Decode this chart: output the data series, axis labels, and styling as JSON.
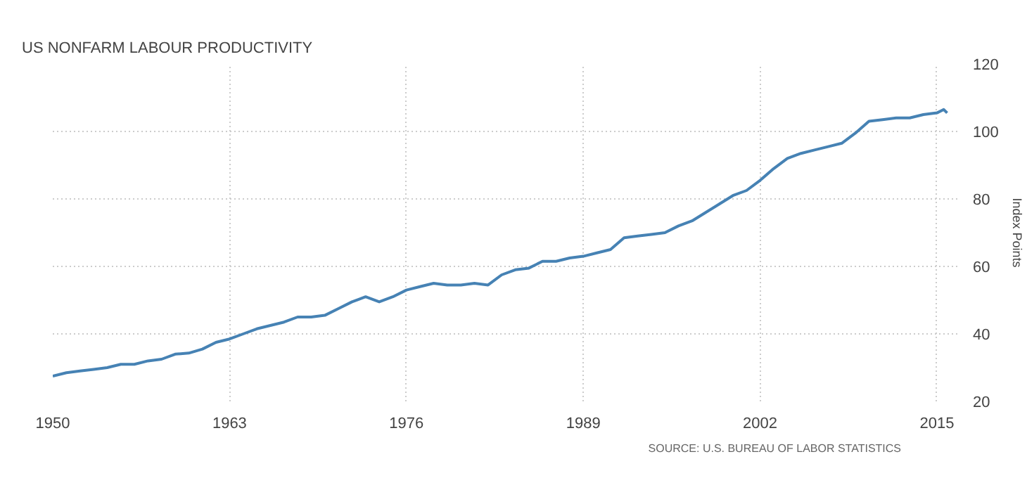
{
  "chart_data": {
    "type": "line",
    "title": "US NONFARM LABOUR PRODUCTIVITY",
    "ylabel": "Index Points",
    "annotations": [
      "SOURCE: U.S. BUREAU OF LABOR STATISTICS"
    ],
    "x": [
      1950,
      1951,
      1952,
      1953,
      1954,
      1955,
      1956,
      1957,
      1958,
      1959,
      1960,
      1961,
      1962,
      1963,
      1964,
      1965,
      1966,
      1967,
      1968,
      1969,
      1970,
      1971,
      1972,
      1973,
      1974,
      1975,
      1976,
      1977,
      1978,
      1979,
      1980,
      1981,
      1982,
      1983,
      1984,
      1985,
      1986,
      1987,
      1988,
      1989,
      1990,
      1991,
      1992,
      1993,
      1994,
      1995,
      1996,
      1997,
      1998,
      1999,
      2000,
      2001,
      2002,
      2003,
      2004,
      2005,
      2006,
      2007,
      2008,
      2009,
      2010,
      2011,
      2012,
      2013,
      2014,
      2015,
      2015.5,
      2015.75
    ],
    "series": [
      {
        "color": "#4682b4",
        "values": [
          27.5,
          28.5,
          29,
          29.5,
          30,
          31,
          31,
          32,
          32.5,
          34,
          34.3,
          35.5,
          37.5,
          38.5,
          40,
          41.5,
          42.5,
          43.5,
          45,
          45,
          45.5,
          47.5,
          49.5,
          51,
          49.5,
          51,
          53,
          54,
          55,
          54.5,
          54.5,
          55,
          54.5,
          57.5,
          59,
          59.5,
          61.5,
          61.5,
          62.5,
          63,
          64,
          65,
          68.5,
          69,
          69.5,
          70,
          72,
          73.5,
          76,
          78.5,
          81,
          82.5,
          85.5,
          89,
          92,
          93.5,
          94.5,
          95.5,
          96.5,
          99.5,
          103,
          103.5,
          104,
          104,
          105,
          105.5,
          106.5,
          105.5
        ]
      }
    ],
    "xlim": [
      1950,
      2016.5
    ],
    "ylim": [
      20,
      120
    ],
    "xticks": [
      1950,
      1963,
      1976,
      1989,
      2002,
      2015
    ],
    "yticks": [
      20,
      40,
      60,
      80,
      100,
      120
    ],
    "grid": true,
    "marker": "none",
    "line_style": "solid"
  }
}
